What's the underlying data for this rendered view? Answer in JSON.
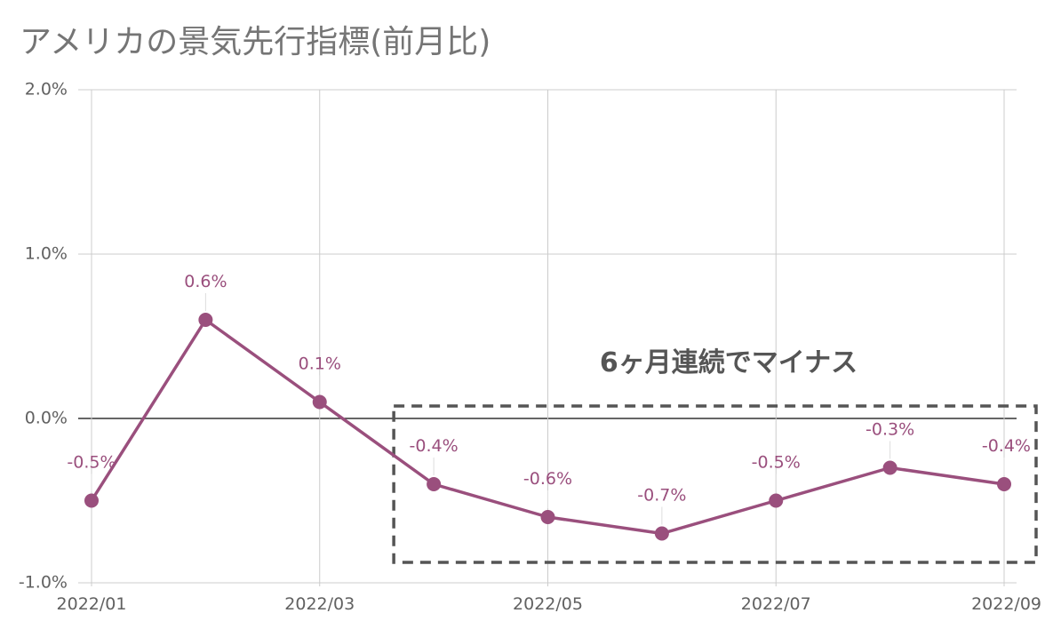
{
  "chart_data": {
    "type": "line",
    "title": "アメリカの景気先行指標(前月比)",
    "x": [
      "2022/01",
      "2022/02",
      "2022/03",
      "2022/04",
      "2022/05",
      "2022/06",
      "2022/07",
      "2022/08",
      "2022/09"
    ],
    "x_tick_labels": [
      "2022/01",
      "2022/03",
      "2022/05",
      "2022/07",
      "2022/09"
    ],
    "series": [
      {
        "values": [
          -0.5,
          0.6,
          0.1,
          -0.4,
          -0.6,
          -0.7,
          -0.5,
          -0.3,
          -0.4
        ],
        "labels": [
          "-0.5%",
          "0.6%",
          "0.1%",
          "-0.4%",
          "-0.6%",
          "-0.7%",
          "-0.5%",
          "-0.3%",
          "-0.4%"
        ],
        "color": "#9a4f7d"
      }
    ],
    "ylim": [
      -1.0,
      2.0
    ],
    "y_ticks": [
      {
        "value": 2.0,
        "label": "2.0%"
      },
      {
        "value": 1.0,
        "label": "1.0%"
      },
      {
        "value": 0.0,
        "label": "0.0%"
      },
      {
        "value": -1.0,
        "label": "-1.0%"
      }
    ],
    "grid": true,
    "annotation": {
      "text": "6ヶ月連続でマイナス",
      "range_start": "2022/04",
      "range_end": "2022/09",
      "style": "dashed-box"
    }
  }
}
